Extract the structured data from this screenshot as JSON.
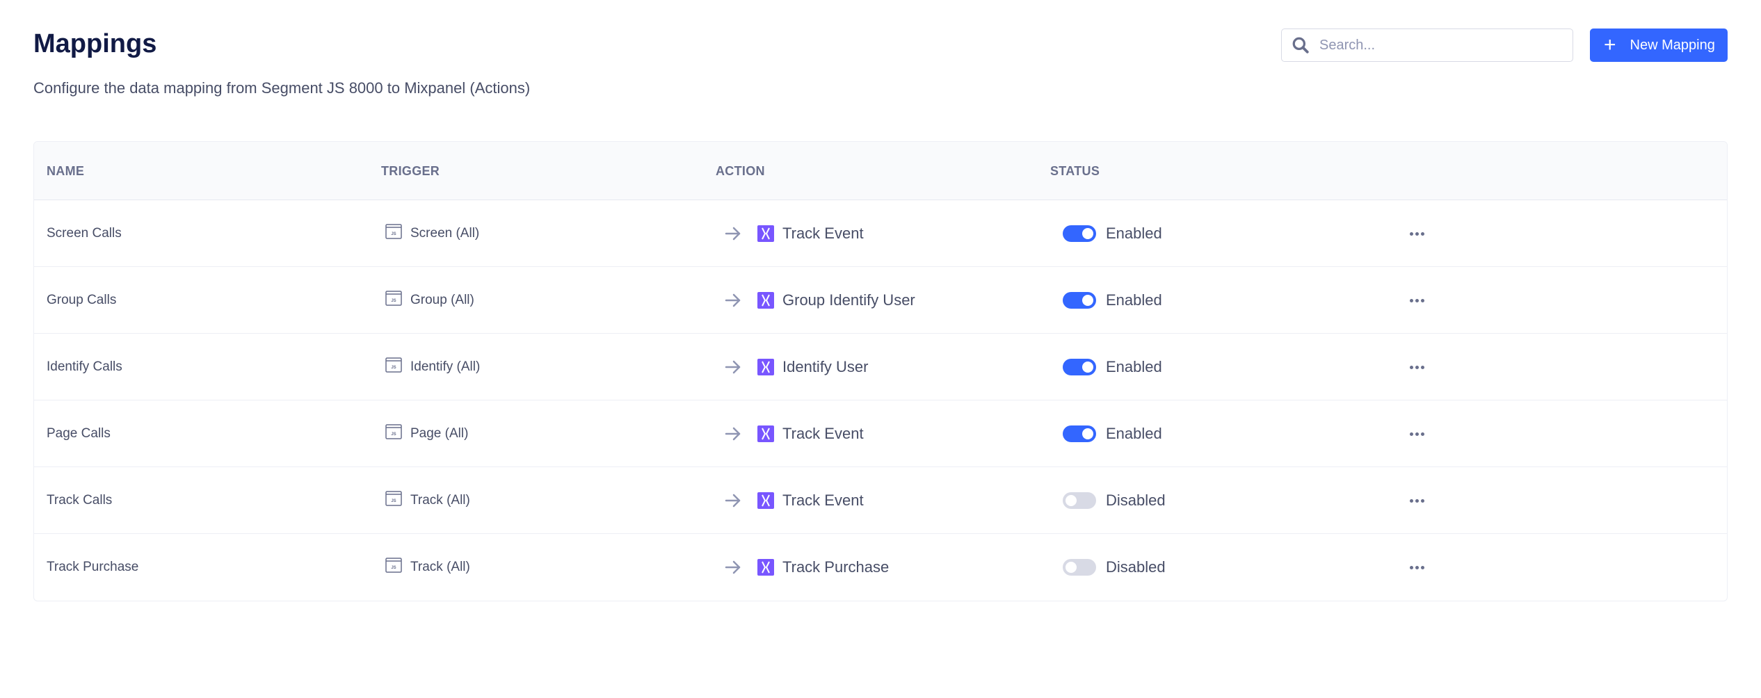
{
  "header": {
    "title": "Mappings",
    "subtitle": "Configure the data mapping from Segment JS 8000 to Mixpanel (Actions)",
    "search_placeholder": "Search...",
    "new_button_label": "New Mapping"
  },
  "colors": {
    "accent": "#3366ff",
    "mixpanel": "#7856ff",
    "toggle_off": "#d8dae5"
  },
  "table": {
    "columns": [
      "NAME",
      "TRIGGER",
      "ACTION",
      "STATUS"
    ],
    "rows": [
      {
        "name": "Screen Calls",
        "trigger": "Screen (All)",
        "action": "Track Event",
        "enabled": true,
        "status": "Enabled"
      },
      {
        "name": "Group Calls",
        "trigger": "Group (All)",
        "action": "Group Identify User",
        "enabled": true,
        "status": "Enabled"
      },
      {
        "name": "Identify Calls",
        "trigger": "Identify (All)",
        "action": "Identify User",
        "enabled": true,
        "status": "Enabled"
      },
      {
        "name": "Page Calls",
        "trigger": "Page (All)",
        "action": "Track Event",
        "enabled": true,
        "status": "Enabled"
      },
      {
        "name": "Track Calls",
        "trigger": "Track (All)",
        "action": "Track Event",
        "enabled": false,
        "status": "Disabled"
      },
      {
        "name": "Track Purchase",
        "trigger": "Track (All)",
        "action": "Track Purchase",
        "enabled": false,
        "status": "Disabled"
      }
    ]
  }
}
